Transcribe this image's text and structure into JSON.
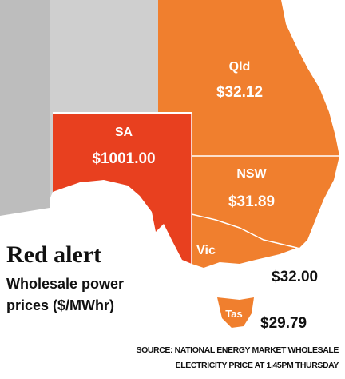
{
  "header": {
    "title": "Red alert",
    "subtitle": [
      "Wholesale power",
      "prices ($/MWhr)"
    ]
  },
  "regions": [
    {
      "name": "Qld",
      "price": "$32.12"
    },
    {
      "name": "SA",
      "price": "$1001.00"
    },
    {
      "name": "NSW",
      "price": "$31.89"
    },
    {
      "name": "Vic",
      "price": "$32.00"
    },
    {
      "name": "Tas",
      "price": "$29.79"
    }
  ],
  "source": [
    "SOURCE: NATIONAL ENERGY MARKET WHOLESALE",
    "ELECTRICITY PRICE AT 1.45PM THURSDAY"
  ]
}
